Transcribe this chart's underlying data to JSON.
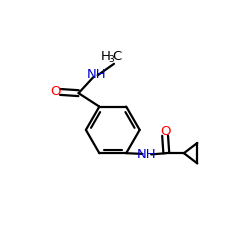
{
  "background": "#ffffff",
  "fig_size": [
    2.5,
    2.5
  ],
  "dpi": 100,
  "atom_colors": {
    "C": "#000000",
    "N": "#0000cd",
    "O": "#ff0000",
    "H": "#000000"
  },
  "bond_color": "#000000",
  "bond_width": 1.6,
  "font_size": 8.5
}
